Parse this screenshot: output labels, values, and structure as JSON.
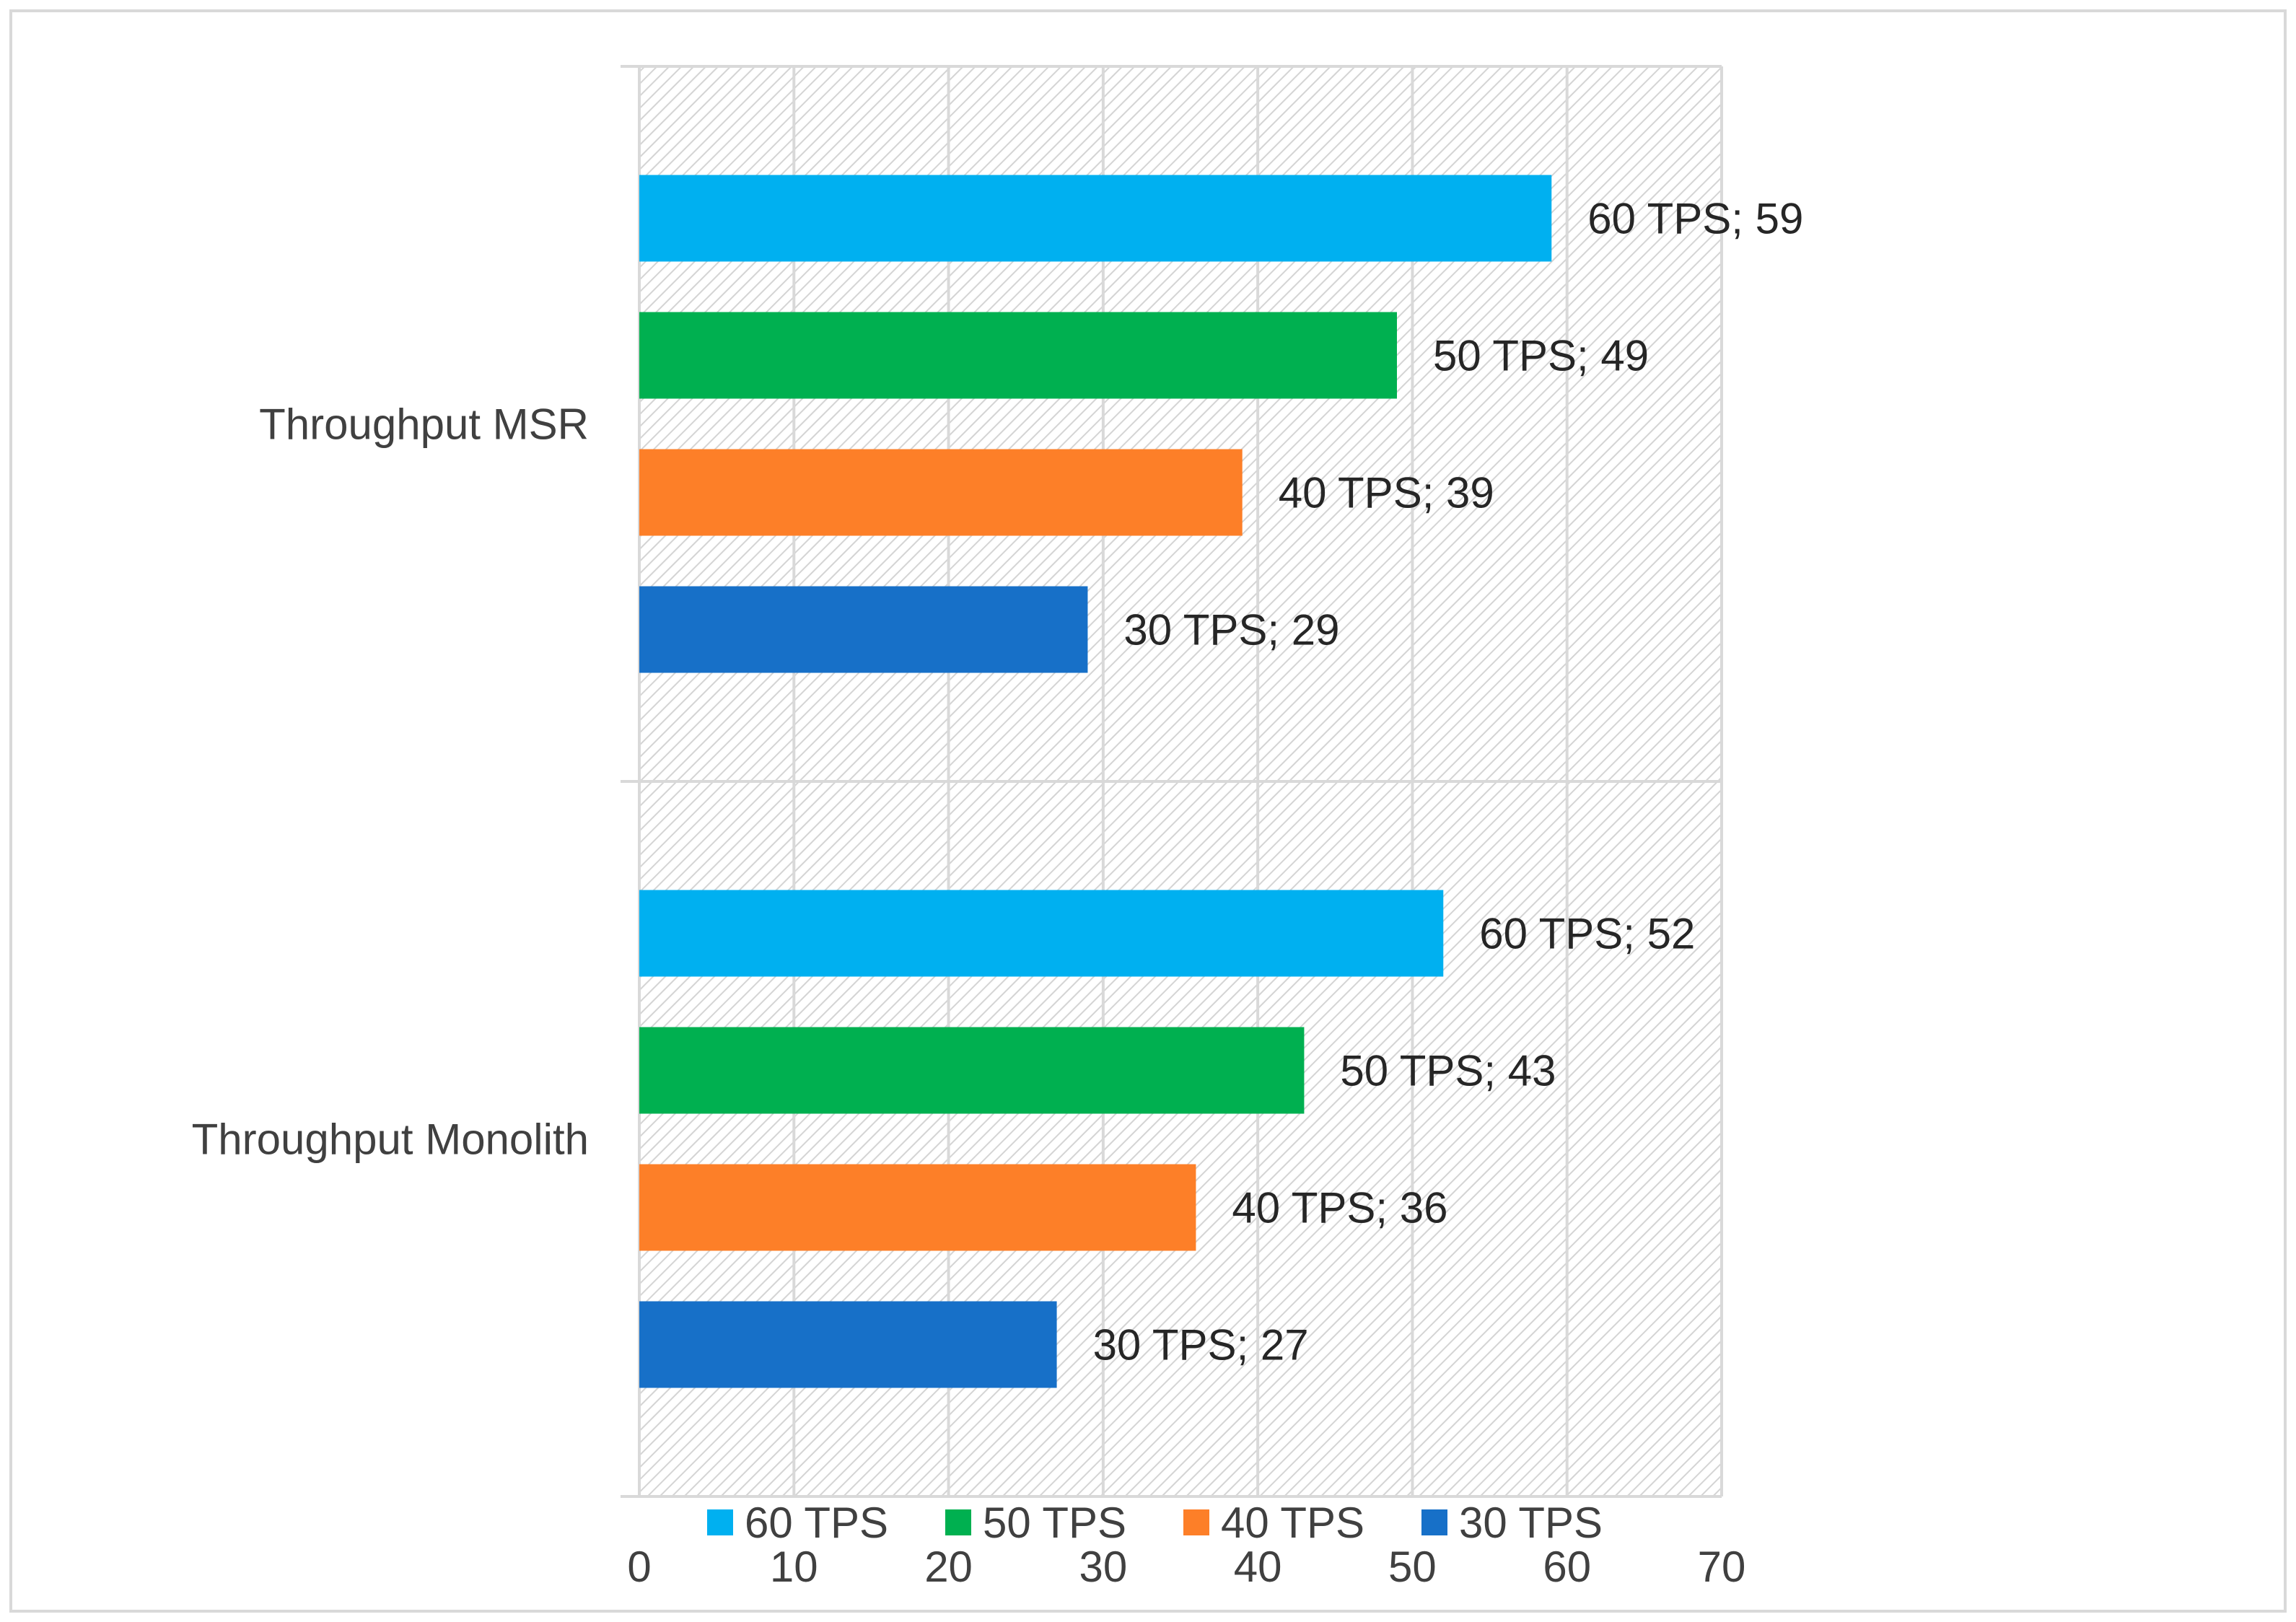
{
  "chart_data": {
    "type": "bar",
    "orientation": "horizontal",
    "categories": [
      "Throughput Monolith",
      "Throughput MSR"
    ],
    "series": [
      {
        "name": "30 TPS",
        "values": [
          27,
          29
        ],
        "color": "#1770c8"
      },
      {
        "name": "40 TPS",
        "values": [
          36,
          39
        ],
        "color": "#fd7f28"
      },
      {
        "name": "50 TPS",
        "values": [
          43,
          49
        ],
        "color": "#00b050"
      },
      {
        "name": "60 TPS",
        "values": [
          52,
          59
        ],
        "color": "#00b0f0"
      }
    ],
    "xlim": [
      0,
      70
    ],
    "x_ticks": [
      0,
      10,
      20,
      30,
      40,
      50,
      60,
      70
    ],
    "data_label_separator": "; ",
    "grid": true,
    "legend_position": "bottom",
    "legend_order": [
      "60 TPS",
      "50 TPS",
      "40 TPS",
      "30 TPS"
    ],
    "title": "",
    "xlabel": "",
    "ylabel": ""
  }
}
